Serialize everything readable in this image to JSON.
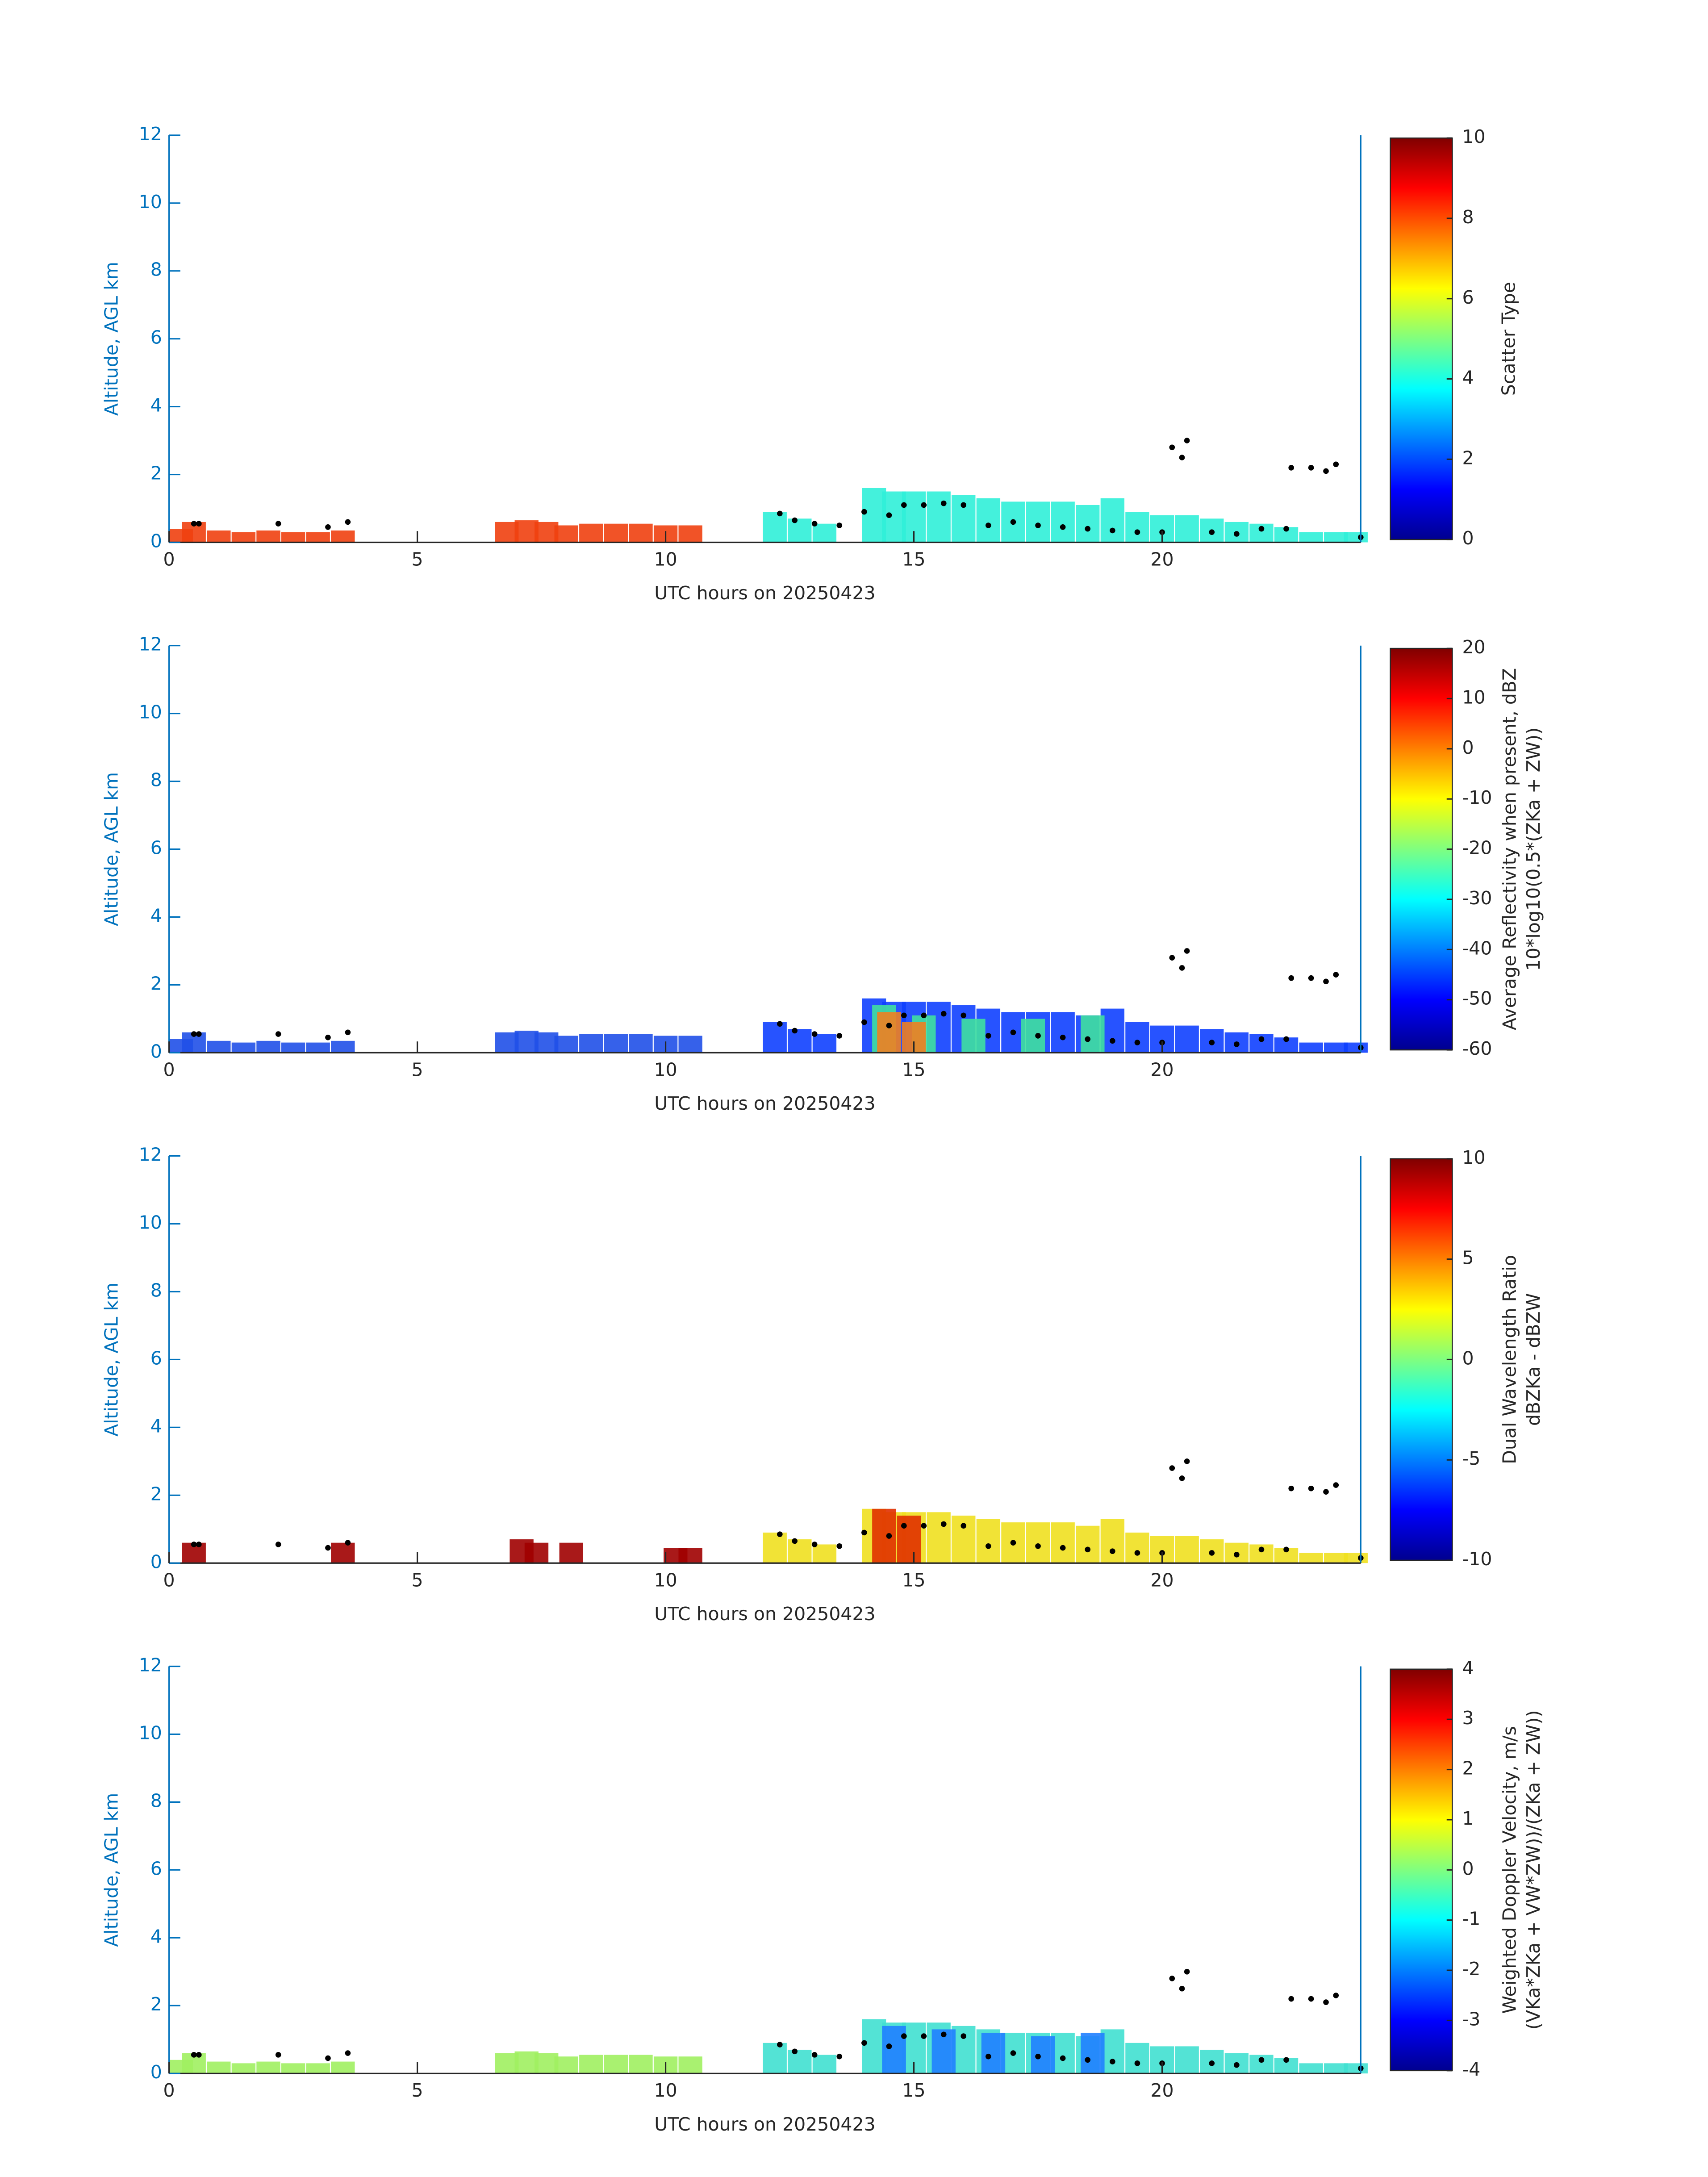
{
  "chart_data": [
    {
      "type": "heatmap",
      "xlabel": "UTC hours on 20250423",
      "ylabel": "Altitude, AGL km",
      "xlim": [
        0,
        24
      ],
      "xticks": [
        0,
        5,
        10,
        15,
        20
      ],
      "ylim": [
        0,
        12
      ],
      "yticks": [
        0,
        2,
        4,
        6,
        8,
        10,
        12
      ],
      "colorbar": {
        "label": [
          "Scatter Type"
        ],
        "lim": [
          0,
          10
        ],
        "ticks": [
          0,
          2,
          4,
          6,
          8,
          10
        ]
      },
      "series": [
        {
          "color": "#f04010",
          "x": [
            0.2,
            0.5,
            1,
            1.5,
            2,
            2.5,
            3,
            3.5,
            6.8,
            7.2,
            7.6,
            8,
            8.5,
            9,
            9.5,
            10,
            10.5
          ],
          "values": [
            0.4,
            0.6,
            0.35,
            0.3,
            0.35,
            0.3,
            0.3,
            0.35,
            0.6,
            0.65,
            0.6,
            0.5,
            0.55,
            0.55,
            0.55,
            0.5,
            0.5
          ]
        },
        {
          "color": "#30f0d8",
          "x": [
            12.2,
            12.7,
            13.2,
            14.2,
            14.6,
            15,
            15.5,
            16,
            16.5,
            17,
            17.5,
            18,
            18.5,
            19,
            19.5,
            20,
            20.5,
            21,
            21.5,
            22,
            22.5,
            23,
            23.5,
            23.9
          ],
          "values": [
            0.9,
            0.7,
            0.55,
            1.6,
            1.5,
            1.5,
            1.5,
            1.4,
            1.3,
            1.2,
            1.2,
            1.2,
            1.1,
            1.3,
            0.9,
            0.8,
            0.8,
            0.7,
            0.6,
            0.55,
            0.45,
            0.3,
            0.3,
            0.3
          ]
        }
      ],
      "overlay": {
        "color": "#000000",
        "x": [
          0.5,
          0.6,
          2.2,
          3.2,
          3.6,
          12.3,
          12.6,
          13,
          13.5,
          14,
          14.5,
          14.8,
          15.2,
          15.6,
          16,
          16.5,
          17,
          17.5,
          18,
          18.5,
          19,
          19.5,
          20,
          20.2,
          20.4,
          20.5,
          21,
          21.5,
          22,
          22.5,
          22.6,
          23,
          23.3,
          23.5,
          24
        ],
        "values": [
          0.55,
          0.55,
          0.55,
          0.45,
          0.6,
          0.85,
          0.65,
          0.55,
          0.5,
          0.9,
          0.8,
          1.1,
          1.1,
          1.15,
          1.1,
          0.5,
          0.6,
          0.5,
          0.45,
          0.4,
          0.35,
          0.3,
          0.3,
          2.8,
          2.5,
          3.0,
          0.3,
          0.25,
          0.4,
          0.4,
          2.2,
          2.2,
          2.1,
          2.3,
          0.15
        ]
      }
    },
    {
      "type": "heatmap",
      "xlabel": "UTC hours on 20250423",
      "ylabel": "Altitude, AGL km",
      "xlim": [
        0,
        24
      ],
      "xticks": [
        0,
        5,
        10,
        15,
        20
      ],
      "ylim": [
        0,
        12
      ],
      "yticks": [
        0,
        2,
        4,
        6,
        8,
        10,
        12
      ],
      "colorbar": {
        "label": [
          "Average Reflectivity when present, dBZ",
          "10*log10(0.5*(ZKa + ZW))"
        ],
        "lim": [
          -60,
          20
        ],
        "ticks": [
          -60,
          -50,
          -40,
          -30,
          -20,
          -10,
          0,
          10,
          20
        ]
      },
      "series": [
        {
          "color": "#2050e8",
          "x": [
            0.2,
            0.5,
            1,
            1.5,
            2,
            2.5,
            3,
            3.5,
            6.8,
            7.2,
            7.6,
            8,
            8.5,
            9,
            9.5,
            10,
            10.5
          ],
          "values": [
            0.4,
            0.6,
            0.35,
            0.3,
            0.35,
            0.3,
            0.3,
            0.35,
            0.6,
            0.65,
            0.6,
            0.5,
            0.55,
            0.55,
            0.55,
            0.5,
            0.5
          ]
        },
        {
          "color": "#1040ff",
          "x": [
            12.2,
            12.7,
            13.2,
            14.2,
            14.6,
            15,
            15.5,
            16,
            16.5,
            17,
            17.5,
            18,
            18.5,
            19,
            19.5,
            20,
            20.5,
            21,
            21.5,
            22,
            22.5,
            23,
            23.5,
            23.9
          ],
          "values": [
            0.9,
            0.7,
            0.55,
            1.6,
            1.5,
            1.5,
            1.5,
            1.4,
            1.3,
            1.2,
            1.2,
            1.2,
            1.1,
            1.3,
            0.9,
            0.8,
            0.8,
            0.7,
            0.6,
            0.55,
            0.45,
            0.3,
            0.3,
            0.3
          ]
        },
        {
          "color": "#40e0a0",
          "x": [
            14.4,
            15.2,
            16.2,
            17.4,
            18.6
          ],
          "values": [
            1.4,
            1.1,
            1.0,
            1.0,
            1.1
          ]
        },
        {
          "color": "#f08020",
          "x": [
            14.5,
            15.0
          ],
          "values": [
            1.2,
            0.9
          ]
        }
      ],
      "overlay": {
        "color": "#000000",
        "x": [
          0.5,
          0.6,
          2.2,
          3.2,
          3.6,
          12.3,
          12.6,
          13,
          13.5,
          14,
          14.5,
          14.8,
          15.2,
          15.6,
          16,
          16.5,
          17,
          17.5,
          18,
          18.5,
          19,
          19.5,
          20,
          20.2,
          20.4,
          20.5,
          21,
          21.5,
          22,
          22.5,
          22.6,
          23,
          23.3,
          23.5,
          24
        ],
        "values": [
          0.55,
          0.55,
          0.55,
          0.45,
          0.6,
          0.85,
          0.65,
          0.55,
          0.5,
          0.9,
          0.8,
          1.1,
          1.1,
          1.15,
          1.1,
          0.5,
          0.6,
          0.5,
          0.45,
          0.4,
          0.35,
          0.3,
          0.3,
          2.8,
          2.5,
          3.0,
          0.3,
          0.25,
          0.4,
          0.4,
          2.2,
          2.2,
          2.1,
          2.3,
          0.15
        ]
      }
    },
    {
      "type": "heatmap",
      "xlabel": "UTC hours on 20250423",
      "ylabel": "Altitude, AGL km",
      "xlim": [
        0,
        24
      ],
      "xticks": [
        0,
        5,
        10,
        15,
        20
      ],
      "ylim": [
        0,
        12
      ],
      "yticks": [
        0,
        2,
        4,
        6,
        8,
        10,
        12
      ],
      "colorbar": {
        "label": [
          "Dual Wavelength Ratio",
          "dBZKa - dBZW"
        ],
        "lim": [
          -10,
          10
        ],
        "ticks": [
          -10,
          -5,
          0,
          5,
          10
        ]
      },
      "series": [
        {
          "color": "#a00000",
          "x": [
            0.5,
            3.5,
            7.1,
            7.4,
            8.1,
            10.2,
            10.5
          ],
          "values": [
            0.6,
            0.6,
            0.7,
            0.6,
            0.6,
            0.45,
            0.45
          ]
        },
        {
          "color": "#f0e020",
          "x": [
            12.2,
            12.7,
            13.2,
            14.2,
            14.6,
            15,
            15.5,
            16,
            16.5,
            17,
            17.5,
            18,
            18.5,
            19,
            19.5,
            20,
            20.5,
            21,
            21.5,
            22,
            22.5,
            23,
            23.5,
            23.9
          ],
          "values": [
            0.9,
            0.7,
            0.55,
            1.6,
            1.5,
            1.5,
            1.5,
            1.4,
            1.3,
            1.2,
            1.2,
            1.2,
            1.1,
            1.3,
            0.9,
            0.8,
            0.8,
            0.7,
            0.6,
            0.55,
            0.45,
            0.3,
            0.3,
            0.3
          ]
        },
        {
          "color": "#e03000",
          "x": [
            14.4,
            14.9
          ],
          "values": [
            1.6,
            1.4
          ]
        }
      ],
      "overlay": {
        "color": "#000000",
        "x": [
          0.5,
          0.6,
          2.2,
          3.2,
          3.6,
          12.3,
          12.6,
          13,
          13.5,
          14,
          14.5,
          14.8,
          15.2,
          15.6,
          16,
          16.5,
          17,
          17.5,
          18,
          18.5,
          19,
          19.5,
          20,
          20.2,
          20.4,
          20.5,
          21,
          21.5,
          22,
          22.5,
          22.6,
          23,
          23.3,
          23.5,
          24
        ],
        "values": [
          0.55,
          0.55,
          0.55,
          0.45,
          0.6,
          0.85,
          0.65,
          0.55,
          0.5,
          0.9,
          0.8,
          1.1,
          1.1,
          1.15,
          1.1,
          0.5,
          0.6,
          0.5,
          0.45,
          0.4,
          0.35,
          0.3,
          0.3,
          2.8,
          2.5,
          3.0,
          0.3,
          0.25,
          0.4,
          0.4,
          2.2,
          2.2,
          2.1,
          2.3,
          0.15
        ]
      }
    },
    {
      "type": "heatmap",
      "xlabel": "UTC hours on 20250423",
      "ylabel": "Altitude, AGL km",
      "xlim": [
        0,
        24
      ],
      "xticks": [
        0,
        5,
        10,
        15,
        20
      ],
      "ylim": [
        0,
        12
      ],
      "yticks": [
        0,
        2,
        4,
        6,
        8,
        10,
        12
      ],
      "colorbar": {
        "label": [
          "Weighted Doppler Velocity, m/s",
          "(VKa*ZKa + VW*ZW))/(ZKa + ZW))"
        ],
        "lim": [
          -4,
          4
        ],
        "ticks": [
          -4,
          -3,
          -2,
          -1,
          0,
          1,
          2,
          3,
          4
        ]
      },
      "series": [
        {
          "color": "#a0f060",
          "x": [
            0.2,
            0.5,
            1,
            1.5,
            2,
            2.5,
            3,
            3.5,
            6.8,
            7.2,
            7.6,
            8,
            8.5,
            9,
            9.5,
            10,
            10.5
          ],
          "values": [
            0.4,
            0.6,
            0.35,
            0.3,
            0.35,
            0.3,
            0.3,
            0.35,
            0.6,
            0.65,
            0.6,
            0.5,
            0.55,
            0.55,
            0.55,
            0.5,
            0.5
          ]
        },
        {
          "color": "#40e0d0",
          "x": [
            12.2,
            12.7,
            13.2,
            14.2,
            14.6,
            15,
            15.5,
            16,
            16.5,
            17,
            17.5,
            18,
            18.5,
            19,
            19.5,
            20,
            20.5,
            21,
            21.5,
            22,
            22.5,
            23,
            23.5,
            23.9
          ],
          "values": [
            0.9,
            0.7,
            0.55,
            1.6,
            1.5,
            1.5,
            1.5,
            1.4,
            1.3,
            1.2,
            1.2,
            1.2,
            1.1,
            1.3,
            0.9,
            0.8,
            0.8,
            0.7,
            0.6,
            0.55,
            0.45,
            0.3,
            0.3,
            0.3
          ]
        },
        {
          "color": "#2080ff",
          "x": [
            14.6,
            15.6,
            16.6,
            17.6,
            18.6
          ],
          "values": [
            1.4,
            1.3,
            1.2,
            1.1,
            1.2
          ]
        }
      ],
      "overlay": {
        "color": "#000000",
        "x": [
          0.5,
          0.6,
          2.2,
          3.2,
          3.6,
          12.3,
          12.6,
          13,
          13.5,
          14,
          14.5,
          14.8,
          15.2,
          15.6,
          16,
          16.5,
          17,
          17.5,
          18,
          18.5,
          19,
          19.5,
          20,
          20.2,
          20.4,
          20.5,
          21,
          21.5,
          22,
          22.5,
          22.6,
          23,
          23.3,
          23.5,
          24
        ],
        "values": [
          0.55,
          0.55,
          0.55,
          0.45,
          0.6,
          0.85,
          0.65,
          0.55,
          0.5,
          0.9,
          0.8,
          1.1,
          1.1,
          1.15,
          1.1,
          0.5,
          0.6,
          0.5,
          0.45,
          0.4,
          0.35,
          0.3,
          0.3,
          2.8,
          2.5,
          3.0,
          0.3,
          0.25,
          0.4,
          0.4,
          2.2,
          2.2,
          2.1,
          2.3,
          0.15
        ]
      }
    }
  ]
}
